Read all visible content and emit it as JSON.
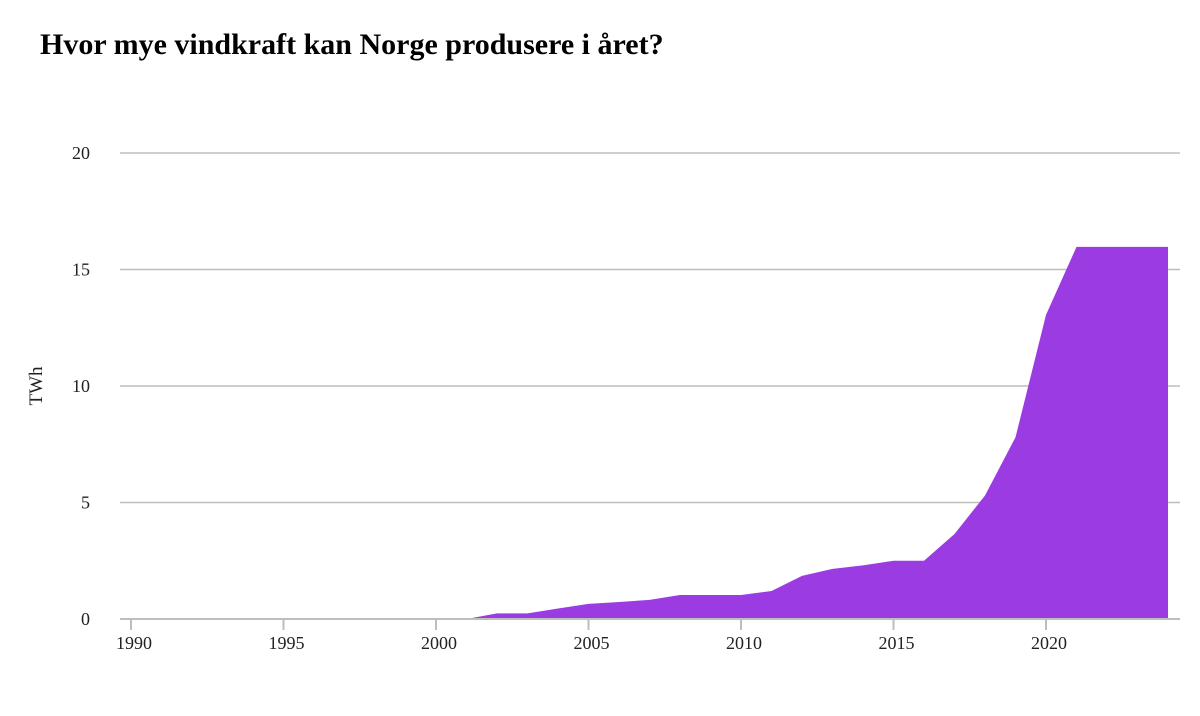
{
  "chart_data": {
    "type": "area",
    "title": "Hvor mye vindkraft kan Norge produsere i året?",
    "xlabel": "",
    "ylabel": "TWh",
    "xlim": [
      1990,
      2024
    ],
    "ylim": [
      0,
      20
    ],
    "x_ticks": [
      1990,
      1995,
      2000,
      2005,
      2010,
      2015,
      2020
    ],
    "y_ticks": [
      0,
      5,
      10,
      15,
      20
    ],
    "grid": "horizontal",
    "color": "#9b3ce2",
    "x": [
      1990,
      1991,
      1992,
      1993,
      1994,
      1995,
      1996,
      1997,
      1998,
      1999,
      2000,
      2001,
      2002,
      2003,
      2004,
      2005,
      2006,
      2007,
      2008,
      2009,
      2010,
      2011,
      2012,
      2013,
      2014,
      2015,
      2016,
      2017,
      2018,
      2019,
      2020,
      2021,
      2022,
      2023,
      2024
    ],
    "values": [
      0,
      0,
      0,
      0,
      0,
      0,
      0,
      0,
      0,
      0,
      0,
      0,
      0.24,
      0.24,
      0.45,
      0.65,
      0.73,
      0.82,
      1.03,
      1.03,
      1.03,
      1.2,
      1.85,
      2.15,
      2.3,
      2.5,
      2.5,
      3.65,
      5.3,
      7.8,
      13.05,
      15.97,
      15.97,
      15.97,
      15.97
    ]
  }
}
